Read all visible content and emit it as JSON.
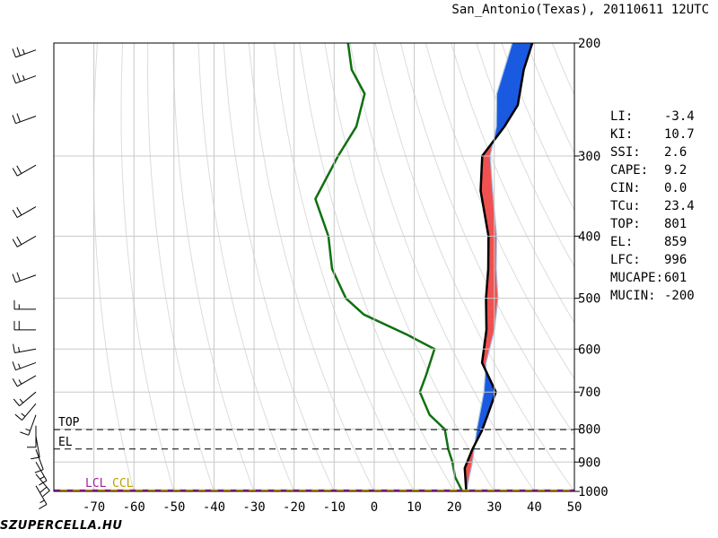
{
  "title": "San_Antonio(Texas), 20110611 12UTC",
  "site_label": "SZUPERCELLA.HU",
  "indices": [
    {
      "label": "LI:",
      "value": "-3.4"
    },
    {
      "label": "KI:",
      "value": "10.7"
    },
    {
      "label": "SSI:",
      "value": "2.6"
    },
    {
      "label": "CAPE:",
      "value": "9.2"
    },
    {
      "label": "CIN:",
      "value": "0.0"
    },
    {
      "label": "TCu:",
      "value": "23.4"
    },
    {
      "label": "TOP:",
      "value": "801"
    },
    {
      "label": "EL:",
      "value": "859"
    },
    {
      "label": "LFC:",
      "value": "996"
    },
    {
      "label": "MUCAPE:",
      "value": "601"
    },
    {
      "label": "MUCIN:",
      "value": "-200"
    }
  ],
  "level_labels": {
    "top": "TOP",
    "el": "EL",
    "lcl": "LCL",
    "ccl": "CCL"
  },
  "colors": {
    "temperature": "#000000",
    "dewpoint": "#107010",
    "parcel": "#a0c0e0",
    "cape": "#f05050",
    "cin": "#1a5ae0",
    "grid": "#c8c8c8",
    "dry_adiabat": "#dcdcdc",
    "lcl": "#a020a0",
    "ccl": "#c0a000"
  },
  "chart_data": {
    "type": "line",
    "x_ticks": [
      "-70",
      "-60",
      "-50",
      "-40",
      "-30",
      "-20",
      "-10",
      "0",
      "10",
      "20",
      "30",
      "40",
      "50"
    ],
    "y_ticks": [
      "200",
      "300",
      "400",
      "500",
      "600",
      "700",
      "800",
      "900",
      "1000"
    ],
    "xlim": [
      -80,
      50
    ],
    "ylim": [
      1000,
      200
    ],
    "ylabel_scale": "log-pressure",
    "skew": "isotherms skewed",
    "series": [
      {
        "key": "temperature",
        "points": [
          [
            1000,
            23
          ],
          [
            920,
            19
          ],
          [
            860,
            18
          ],
          [
            805,
            17.5
          ],
          [
            760,
            16.5
          ],
          [
            700,
            15
          ],
          [
            630,
            7
          ],
          [
            560,
            3
          ],
          [
            500,
            -2
          ],
          [
            450,
            -6
          ],
          [
            400,
            -11
          ],
          [
            340,
            -20
          ],
          [
            300,
            -25
          ],
          [
            270,
            -24
          ],
          [
            250,
            -24
          ],
          [
            220,
            -28
          ],
          [
            200,
            -30
          ]
        ]
      },
      {
        "key": "dewpoint",
        "points": [
          [
            1000,
            22
          ],
          [
            950,
            18
          ],
          [
            900,
            15
          ],
          [
            860,
            12
          ],
          [
            800,
            8
          ],
          [
            760,
            2
          ],
          [
            700,
            -4
          ],
          [
            660,
            -5
          ],
          [
            600,
            -7
          ],
          [
            570,
            -16
          ],
          [
            530,
            -30
          ],
          [
            500,
            -37
          ],
          [
            450,
            -45
          ],
          [
            400,
            -51
          ],
          [
            350,
            -60
          ],
          [
            300,
            -61
          ],
          [
            270,
            -61
          ],
          [
            240,
            -64
          ],
          [
            220,
            -71
          ],
          [
            200,
            -76
          ]
        ]
      },
      {
        "key": "parcel",
        "points": [
          [
            1000,
            23
          ],
          [
            900,
            20
          ],
          [
            800,
            16
          ],
          [
            700,
            12
          ],
          [
            630,
            8
          ],
          [
            560,
            5
          ],
          [
            500,
            1
          ],
          [
            450,
            -4
          ],
          [
            400,
            -9
          ],
          [
            340,
            -17
          ],
          [
            300,
            -23
          ],
          [
            270,
            -26
          ],
          [
            240,
            -31
          ],
          [
            200,
            -35
          ]
        ]
      }
    ],
    "markers": {
      "top_hpa": 801,
      "el_hpa": 859,
      "lcl_hpa": 996,
      "ccl_hpa": 996
    }
  },
  "wind_barbs": [
    {
      "hpa": 980,
      "dir": 150,
      "kt": 15
    },
    {
      "hpa": 940,
      "dir": 140,
      "kt": 20
    },
    {
      "hpa": 900,
      "dir": 150,
      "kt": 15
    },
    {
      "hpa": 860,
      "dir": 160,
      "kt": 10
    },
    {
      "hpa": 820,
      "dir": 170,
      "kt": 10
    },
    {
      "hpa": 790,
      "dir": 180,
      "kt": 10
    },
    {
      "hpa": 760,
      "dir": 200,
      "kt": 15
    },
    {
      "hpa": 730,
      "dir": 220,
      "kt": 15
    },
    {
      "hpa": 700,
      "dir": 230,
      "kt": 15
    },
    {
      "hpa": 660,
      "dir": 240,
      "kt": 15
    },
    {
      "hpa": 630,
      "dir": 250,
      "kt": 15
    },
    {
      "hpa": 600,
      "dir": 260,
      "kt": 15
    },
    {
      "hpa": 560,
      "dir": 270,
      "kt": 20
    },
    {
      "hpa": 520,
      "dir": 270,
      "kt": 15
    },
    {
      "hpa": 460,
      "dir": 250,
      "kt": 20
    },
    {
      "hpa": 400,
      "dir": 240,
      "kt": 20
    },
    {
      "hpa": 360,
      "dir": 240,
      "kt": 20
    },
    {
      "hpa": 310,
      "dir": 240,
      "kt": 20
    },
    {
      "hpa": 260,
      "dir": 250,
      "kt": 20
    },
    {
      "hpa": 225,
      "dir": 250,
      "kt": 25
    },
    {
      "hpa": 205,
      "dir": 250,
      "kt": 25
    }
  ]
}
